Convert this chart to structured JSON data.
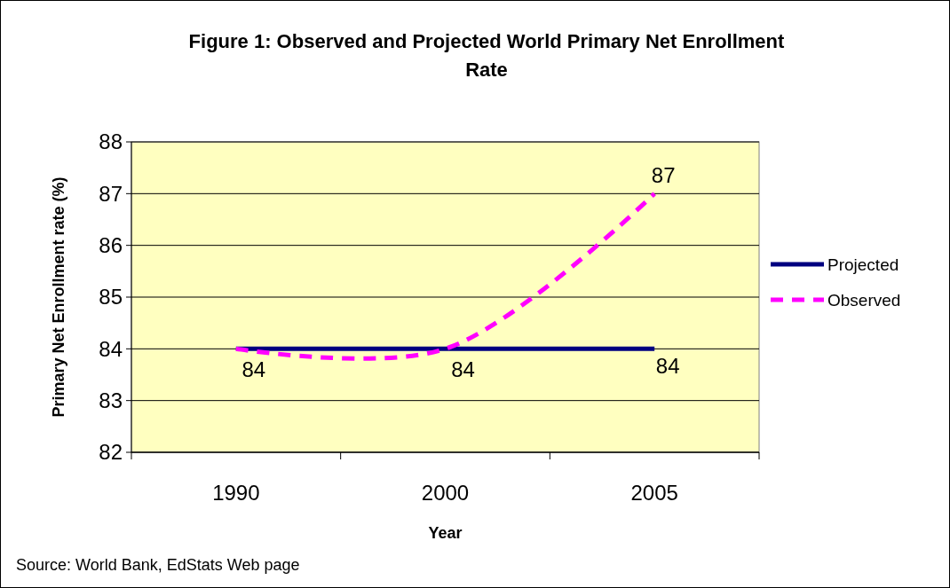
{
  "chart_data": {
    "type": "line",
    "title": "Figure 1: Observed and Projected World Primary Net Enrollment Rate",
    "xlabel": "Year",
    "ylabel": "Primary Net Enrollment rate (%)",
    "annotations": [
      "Source: World Bank, EdStats Web page"
    ],
    "categories": [
      "1990",
      "2000",
      "2005"
    ],
    "series": [
      {
        "name": "Projected",
        "color": "#000080",
        "values": [
          84,
          84,
          84
        ],
        "line_style": "solid",
        "value_labels": [
          null,
          null,
          "84"
        ]
      },
      {
        "name": "Observed",
        "color": "#ff00ff",
        "values": [
          84,
          84,
          87
        ],
        "line_style": "dashed",
        "value_labels": [
          "84",
          "84",
          "87"
        ]
      }
    ],
    "ylim": [
      82,
      88
    ],
    "yticks": [
      82,
      83,
      84,
      85,
      86,
      87,
      88
    ],
    "grid": "y",
    "legend": "right"
  }
}
